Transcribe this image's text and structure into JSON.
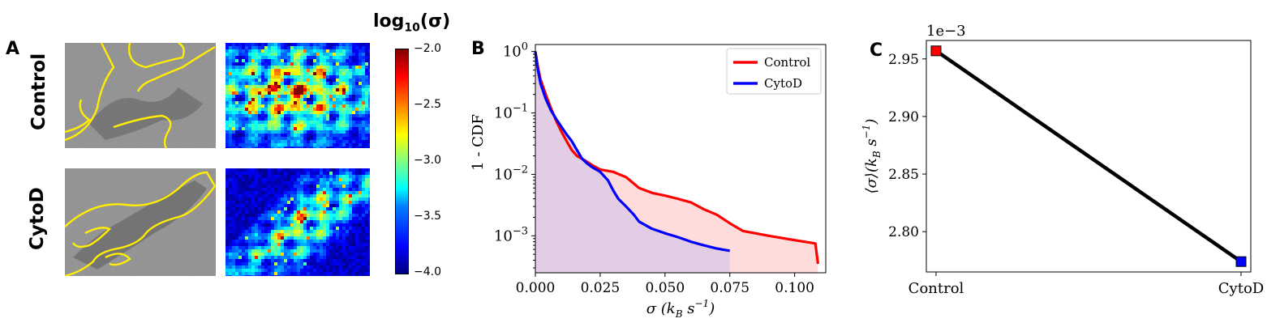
{
  "panels": {
    "a_letter": "A",
    "b_letter": "B",
    "c_letter": "C"
  },
  "panel_a": {
    "row_labels": [
      "Control",
      "CytoD"
    ],
    "colorbar": {
      "title_prefix": "log",
      "title_sub": "10",
      "title_suffix": "(σ)",
      "ticks": [
        "−2.0",
        "−2.5",
        "−3.0",
        "−3.5",
        "−4.0"
      ],
      "tick_values": [
        -2.0,
        -2.5,
        -3.0,
        -3.5,
        -4.0
      ],
      "range": [
        -4.0,
        -2.0
      ],
      "colormap": "jet"
    }
  },
  "chart_data": [
    {
      "type": "line",
      "panel": "B",
      "xlabel_sym": "σ",
      "xlabel_unit": "(k",
      "xlabel_sub": "B",
      "xlabel_s": " s",
      "xlabel_exp": "−1",
      "xlabel_close": ")",
      "ylabel": "1 - CDF",
      "yscale": "log",
      "xlim": [
        0.0,
        0.112
      ],
      "ylim": [
        0.00025,
        1.3
      ],
      "x_ticks": [
        0.0,
        0.025,
        0.05,
        0.075,
        0.1
      ],
      "x_tick_labels": [
        "0.000",
        "0.025",
        "0.050",
        "0.075",
        "0.100"
      ],
      "y_tick_values": [
        1,
        0.1,
        0.01,
        0.001
      ],
      "y_tick_base": "10",
      "y_tick_exps": [
        "0",
        "−1",
        "−2",
        "−3"
      ],
      "legend_position": "top-right",
      "series": [
        {
          "name": "Control",
          "color": "#ff0000",
          "fill": "#ffd6d6",
          "x": [
            0.0,
            0.001,
            0.002,
            0.004,
            0.006,
            0.008,
            0.01,
            0.012,
            0.014,
            0.016,
            0.018,
            0.02,
            0.022,
            0.025,
            0.03,
            0.035,
            0.04,
            0.045,
            0.05,
            0.055,
            0.06,
            0.065,
            0.07,
            0.075,
            0.08,
            0.09,
            0.1,
            0.108,
            0.109
          ],
          "y": [
            1.0,
            0.55,
            0.35,
            0.2,
            0.12,
            0.075,
            0.05,
            0.035,
            0.025,
            0.02,
            0.018,
            0.016,
            0.014,
            0.012,
            0.011,
            0.009,
            0.006,
            0.005,
            0.0045,
            0.004,
            0.0035,
            0.0027,
            0.0022,
            0.0016,
            0.0012,
            0.001,
            0.00085,
            0.00075,
            0.00035
          ]
        },
        {
          "name": "CytoD",
          "color": "#0000ff",
          "fill": "#d9c8e8",
          "x": [
            0.0,
            0.001,
            0.002,
            0.004,
            0.006,
            0.008,
            0.01,
            0.012,
            0.014,
            0.016,
            0.018,
            0.02,
            0.022,
            0.025,
            0.028,
            0.03,
            0.032,
            0.035,
            0.038,
            0.04,
            0.045,
            0.05,
            0.055,
            0.06,
            0.065,
            0.07,
            0.075
          ],
          "y": [
            1.0,
            0.5,
            0.3,
            0.17,
            0.11,
            0.08,
            0.06,
            0.045,
            0.035,
            0.025,
            0.018,
            0.015,
            0.013,
            0.011,
            0.008,
            0.0055,
            0.004,
            0.003,
            0.0022,
            0.0017,
            0.0013,
            0.0011,
            0.00095,
            0.0008,
            0.0007,
            0.00062,
            0.00057
          ]
        }
      ]
    },
    {
      "type": "line",
      "panel": "C",
      "categories": [
        "Control",
        "CytoD"
      ],
      "values": [
        0.002957,
        0.002774
      ],
      "marker_colors": [
        "#ff0000",
        "#0000ff"
      ],
      "offset_label": "1e−3",
      "ylabel_left": "⟨σ⟩(k",
      "ylabel_sub": "B",
      "ylabel_s": " s",
      "ylabel_exp": "−1",
      "ylabel_close": ")",
      "ylim": [
        0.002765,
        0.002966
      ],
      "y_ticks": [
        2.8,
        2.85,
        2.9,
        2.95
      ],
      "y_tick_labels": [
        "2.80",
        "2.85",
        "2.90",
        "2.95"
      ]
    }
  ]
}
